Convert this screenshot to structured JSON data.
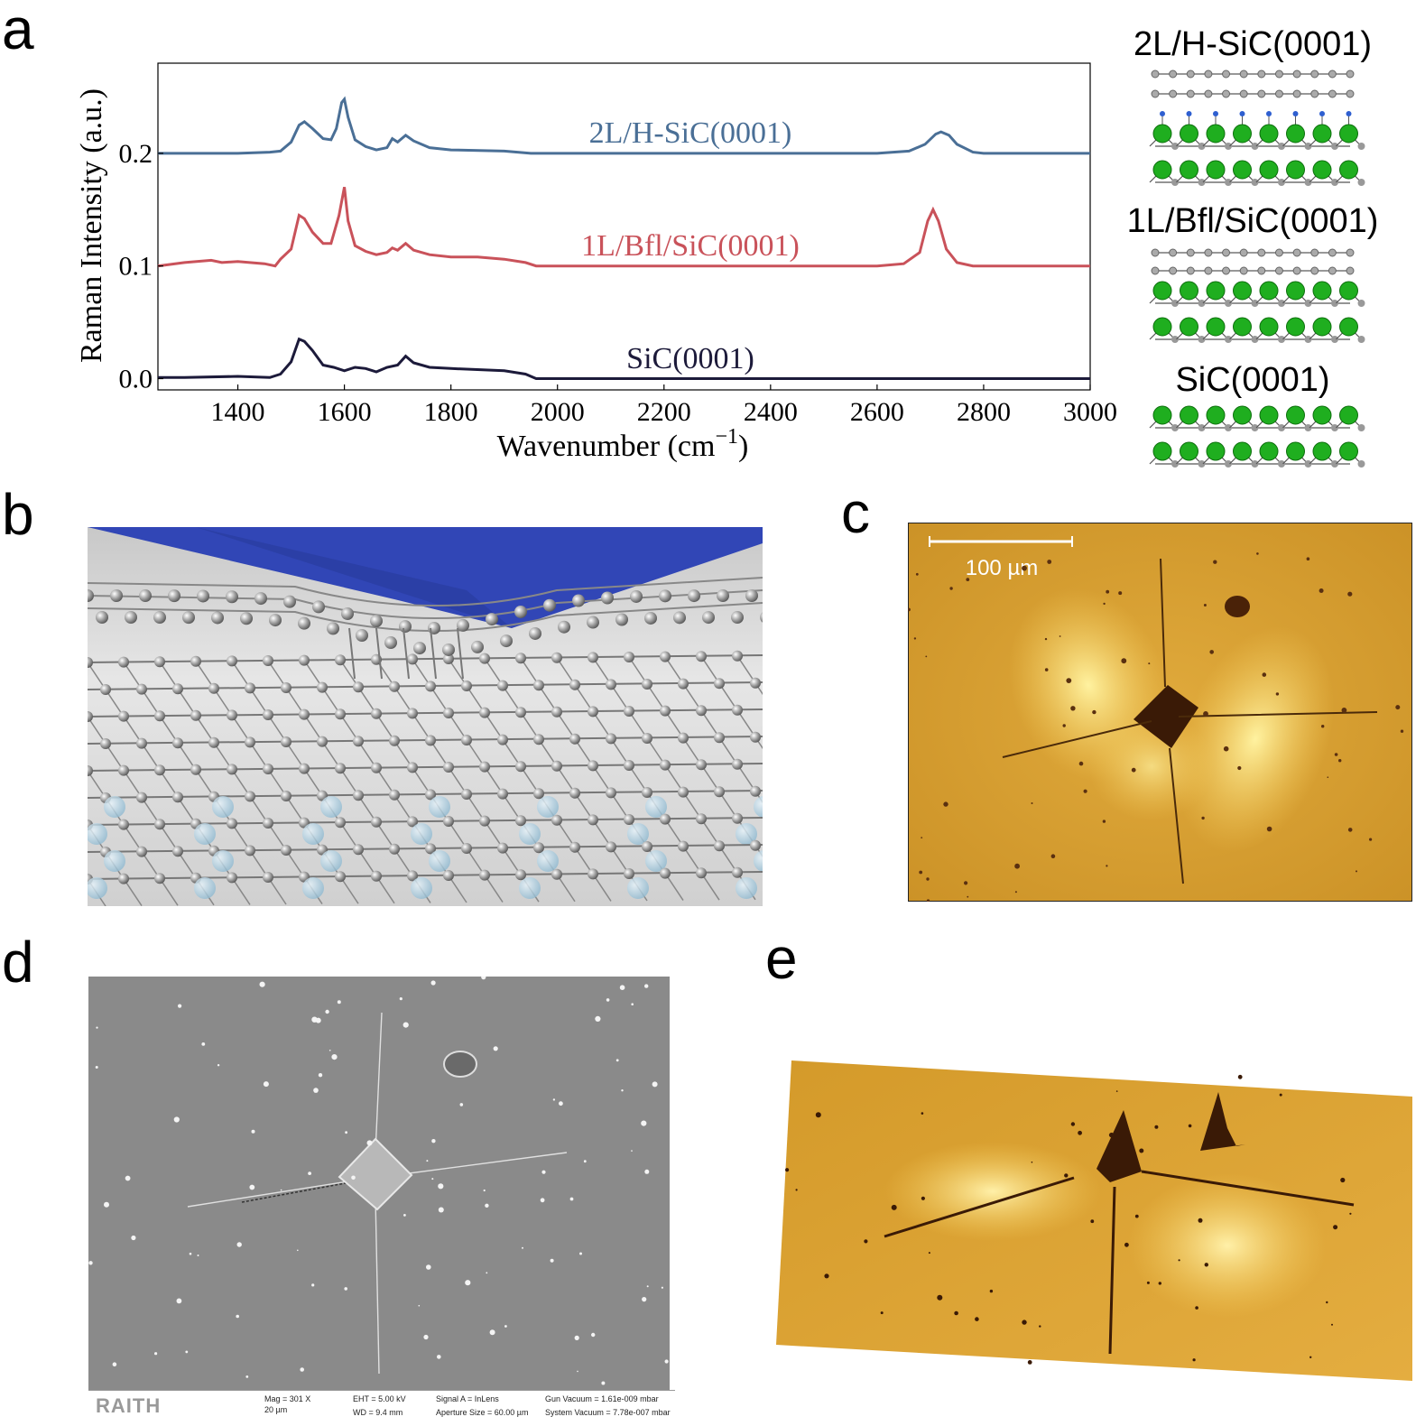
{
  "panels": {
    "a": "a",
    "b": "b",
    "c": "c",
    "d": "d",
    "e": "e"
  },
  "chart_data": {
    "type": "line",
    "xlabel": "Wavenumber (cm",
    "xlabel_sup": "−1",
    "xlabel_close": ")",
    "ylabel": "Raman Intensity (a.u.)",
    "xlim": [
      1250,
      3000
    ],
    "ylim": [
      -0.01,
      0.28
    ],
    "xticks": [
      "1400",
      "1600",
      "1800",
      "2000",
      "2200",
      "2400",
      "2600",
      "2800",
      "3000"
    ],
    "xtick_values": [
      1400,
      1600,
      1800,
      2000,
      2200,
      2400,
      2600,
      2800,
      3000
    ],
    "yticks": [
      "0.0",
      "0.1",
      "0.2"
    ],
    "ytick_values": [
      0.0,
      0.1,
      0.2
    ],
    "grid": false,
    "series": [
      {
        "name": "2L/H-SiC(0001)",
        "color": "#4a6f96",
        "baseline": 0.2,
        "points": [
          [
            1250,
            0.2
          ],
          [
            1300,
            0.2
          ],
          [
            1400,
            0.2
          ],
          [
            1460,
            0.201
          ],
          [
            1480,
            0.202
          ],
          [
            1500,
            0.21
          ],
          [
            1515,
            0.225
          ],
          [
            1525,
            0.228
          ],
          [
            1540,
            0.222
          ],
          [
            1560,
            0.213
          ],
          [
            1575,
            0.212
          ],
          [
            1585,
            0.222
          ],
          [
            1595,
            0.245
          ],
          [
            1600,
            0.248
          ],
          [
            1607,
            0.232
          ],
          [
            1620,
            0.212
          ],
          [
            1640,
            0.206
          ],
          [
            1660,
            0.203
          ],
          [
            1680,
            0.205
          ],
          [
            1690,
            0.213
          ],
          [
            1700,
            0.21
          ],
          [
            1715,
            0.216
          ],
          [
            1730,
            0.211
          ],
          [
            1760,
            0.205
          ],
          [
            1800,
            0.203
          ],
          [
            1900,
            0.202
          ],
          [
            1950,
            0.2
          ],
          [
            2000,
            0.2
          ],
          [
            2200,
            0.2
          ],
          [
            2400,
            0.2
          ],
          [
            2600,
            0.2
          ],
          [
            2660,
            0.202
          ],
          [
            2690,
            0.208
          ],
          [
            2710,
            0.217
          ],
          [
            2720,
            0.219
          ],
          [
            2735,
            0.216
          ],
          [
            2750,
            0.208
          ],
          [
            2780,
            0.201
          ],
          [
            2800,
            0.2
          ],
          [
            3000,
            0.2
          ]
        ]
      },
      {
        "name": "1L/Bfl/SiC(0001)",
        "color": "#c9525a",
        "baseline": 0.1,
        "points": [
          [
            1250,
            0.1
          ],
          [
            1300,
            0.103
          ],
          [
            1350,
            0.105
          ],
          [
            1370,
            0.103
          ],
          [
            1400,
            0.104
          ],
          [
            1450,
            0.102
          ],
          [
            1470,
            0.1
          ],
          [
            1480,
            0.106
          ],
          [
            1500,
            0.115
          ],
          [
            1515,
            0.145
          ],
          [
            1525,
            0.142
          ],
          [
            1540,
            0.13
          ],
          [
            1560,
            0.12
          ],
          [
            1575,
            0.12
          ],
          [
            1590,
            0.145
          ],
          [
            1600,
            0.17
          ],
          [
            1607,
            0.14
          ],
          [
            1620,
            0.118
          ],
          [
            1640,
            0.113
          ],
          [
            1660,
            0.11
          ],
          [
            1680,
            0.112
          ],
          [
            1690,
            0.116
          ],
          [
            1700,
            0.114
          ],
          [
            1715,
            0.12
          ],
          [
            1730,
            0.114
          ],
          [
            1760,
            0.11
          ],
          [
            1800,
            0.108
          ],
          [
            1850,
            0.108
          ],
          [
            1900,
            0.106
          ],
          [
            1940,
            0.103
          ],
          [
            1960,
            0.1
          ],
          [
            2000,
            0.1
          ],
          [
            2200,
            0.1
          ],
          [
            2400,
            0.1
          ],
          [
            2600,
            0.1
          ],
          [
            2650,
            0.102
          ],
          [
            2680,
            0.112
          ],
          [
            2695,
            0.14
          ],
          [
            2705,
            0.15
          ],
          [
            2715,
            0.14
          ],
          [
            2730,
            0.115
          ],
          [
            2750,
            0.103
          ],
          [
            2780,
            0.1
          ],
          [
            3000,
            0.1
          ]
        ]
      },
      {
        "name": "SiC(0001)",
        "color": "#1c1a3a",
        "baseline": 0.0,
        "points": [
          [
            1250,
            0.001
          ],
          [
            1300,
            0.001
          ],
          [
            1400,
            0.002
          ],
          [
            1460,
            0.001
          ],
          [
            1480,
            0.004
          ],
          [
            1500,
            0.015
          ],
          [
            1515,
            0.035
          ],
          [
            1525,
            0.033
          ],
          [
            1540,
            0.025
          ],
          [
            1560,
            0.012
          ],
          [
            1580,
            0.01
          ],
          [
            1600,
            0.007
          ],
          [
            1620,
            0.01
          ],
          [
            1640,
            0.009
          ],
          [
            1660,
            0.006
          ],
          [
            1680,
            0.01
          ],
          [
            1700,
            0.012
          ],
          [
            1715,
            0.02
          ],
          [
            1730,
            0.014
          ],
          [
            1760,
            0.01
          ],
          [
            1800,
            0.009
          ],
          [
            1900,
            0.007
          ],
          [
            1940,
            0.004
          ],
          [
            1960,
            0.0
          ],
          [
            2000,
            0.0
          ],
          [
            2200,
            0.0
          ],
          [
            2400,
            0.0
          ],
          [
            2600,
            0.0
          ],
          [
            2800,
            0.0
          ],
          [
            3000,
            0.0
          ]
        ]
      }
    ]
  },
  "schematics": {
    "labels": [
      "2L/H-SiC(0001)",
      "1L/Bfl/SiC(0001)",
      "SiC(0001)"
    ]
  },
  "panel_c": {
    "scalebar_label": "100 µm"
  },
  "panel_d": {
    "logo": "RAITH",
    "mag": "Mag =   301 X",
    "scale": "20 µm",
    "eht": "EHT =   5.00 kV",
    "wd": "WD =   9.4 mm",
    "signal": "Signal A = InLens",
    "aperture": "Aperture Size = 60.00 µm",
    "gun_vacuum": "Gun Vacuum = 1.61e-009 mbar",
    "system_vacuum": "System Vacuum = 7.78e-007 mbar"
  },
  "colors": {
    "optical_bg": "#d9a032",
    "sem_bg": "#8c8c8c",
    "indenter_blue": "#3146b6",
    "silicon_green": "#1fae1f"
  }
}
